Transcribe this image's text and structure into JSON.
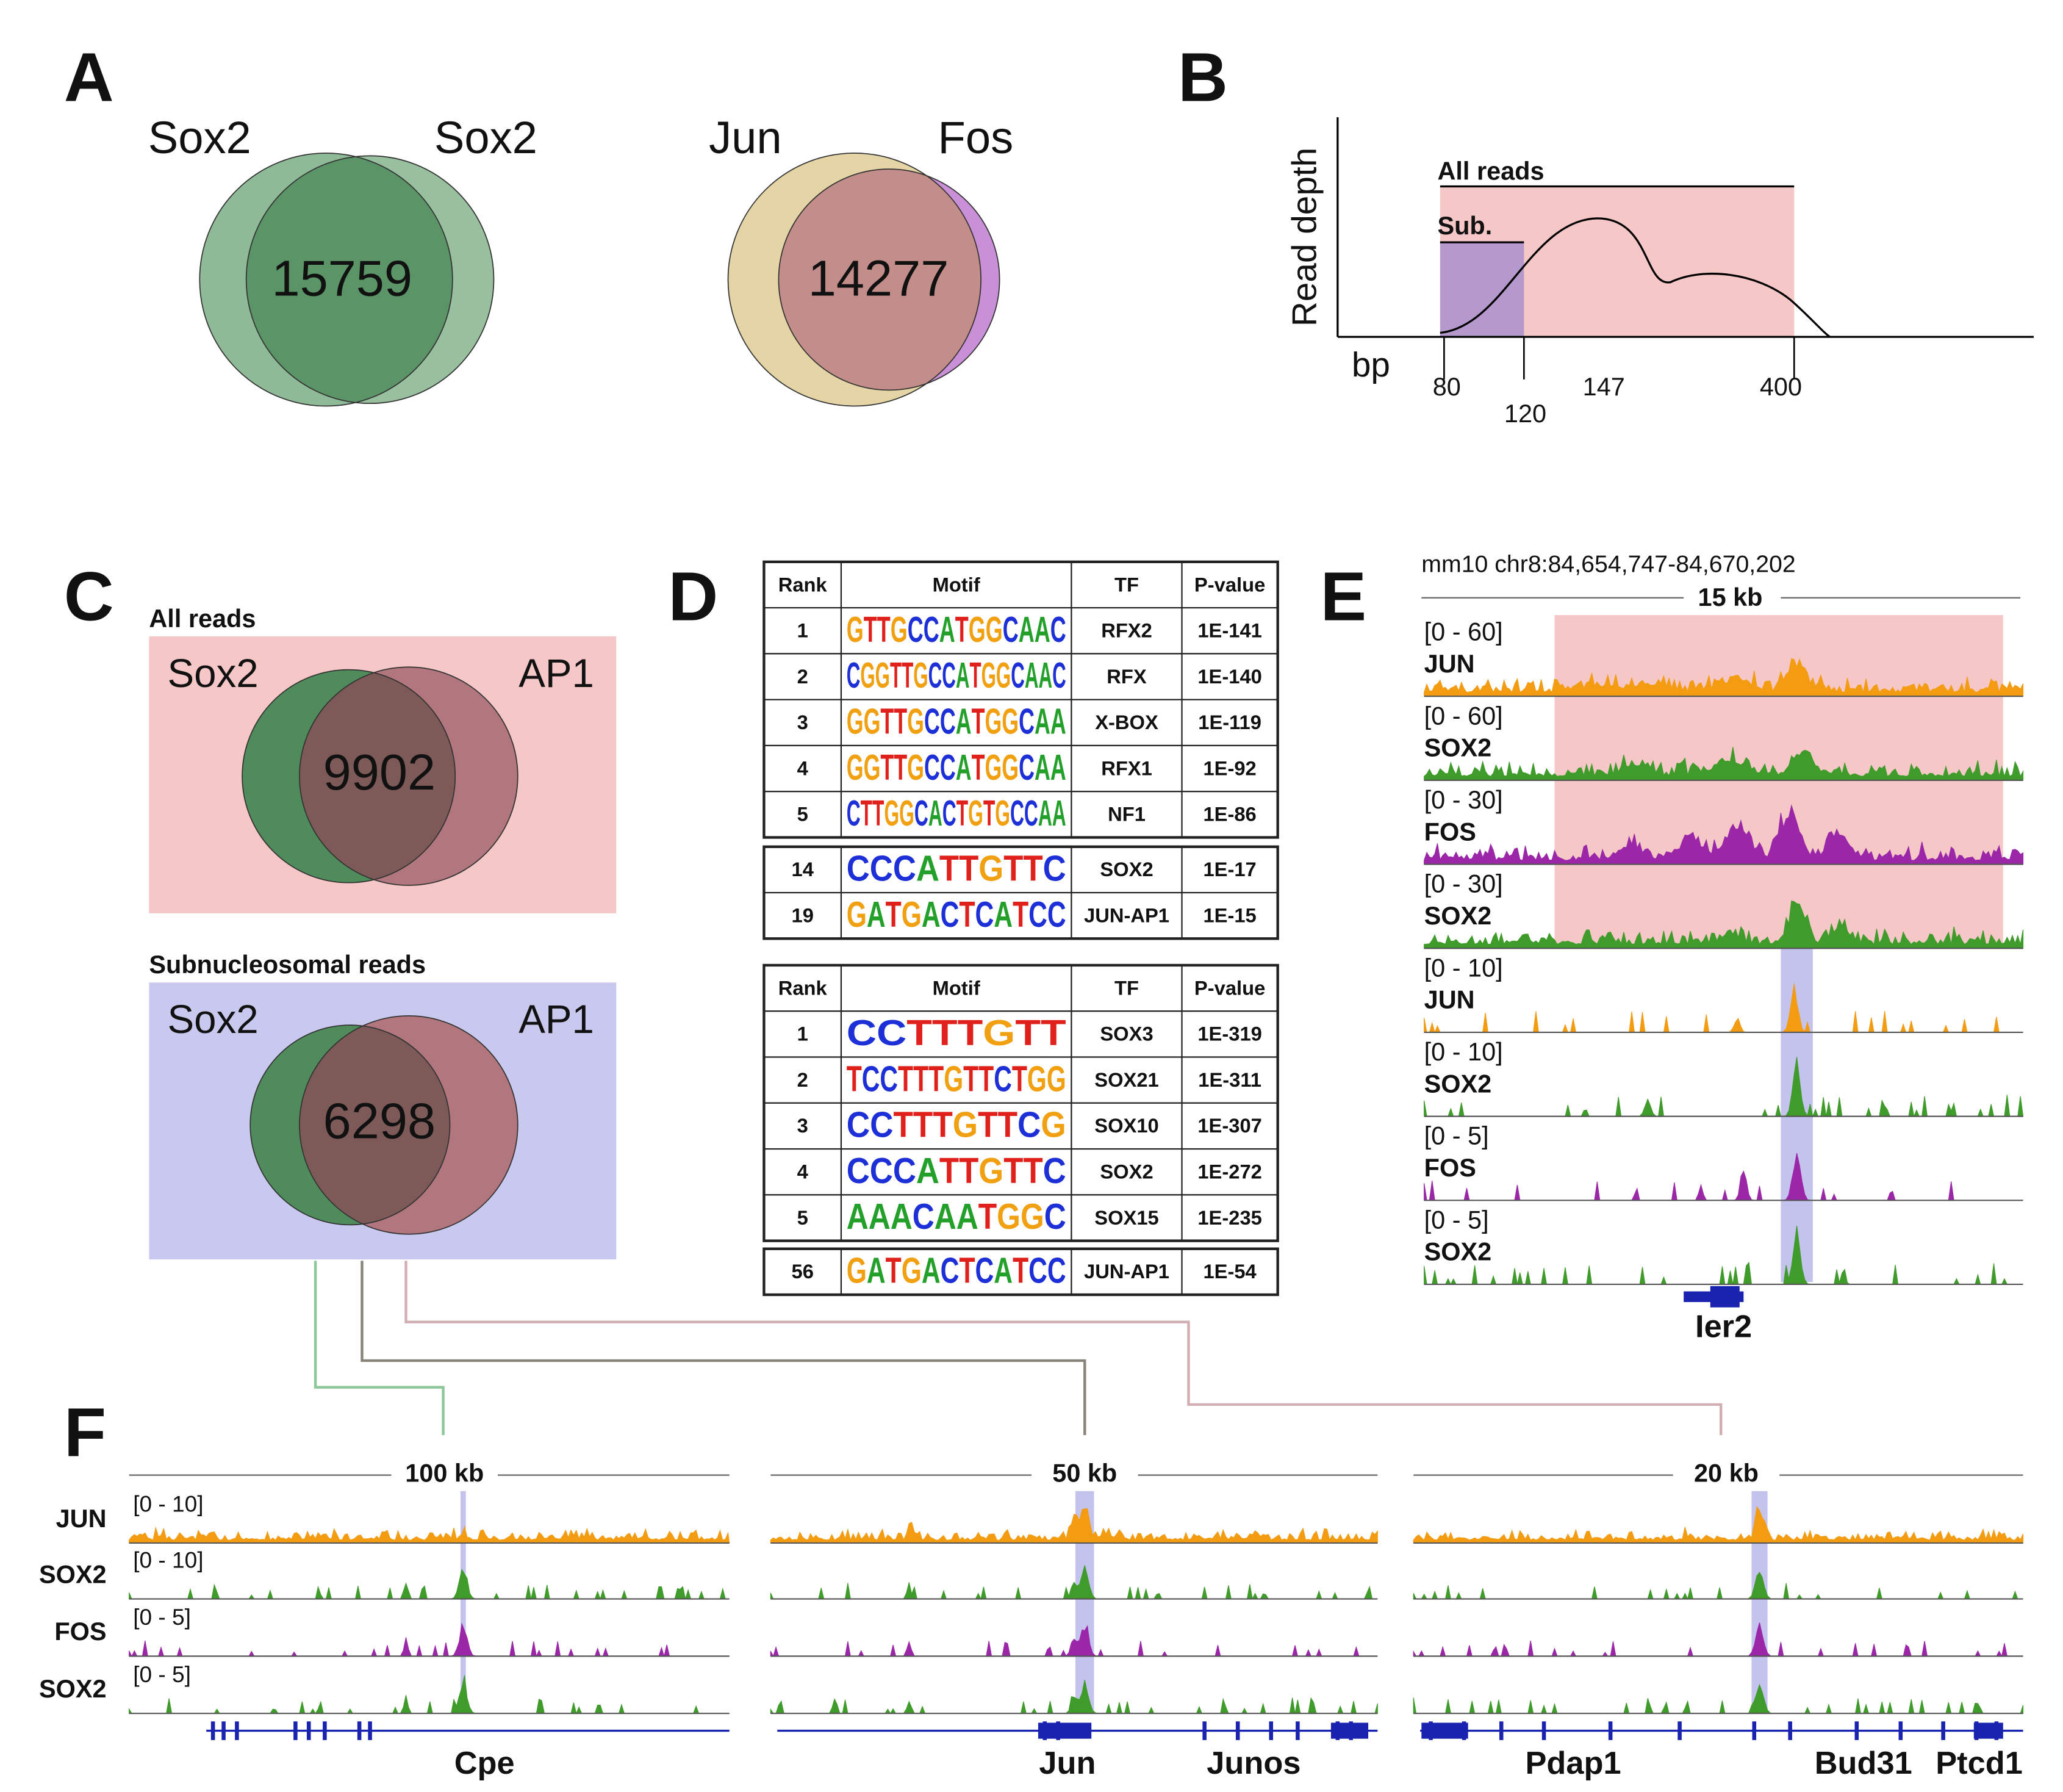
{
  "panel_labels": [
    "A",
    "B",
    "C",
    "D",
    "E",
    "F"
  ],
  "panel_a": {
    "venns": [
      {
        "left": "Sox2",
        "right": "Sox2",
        "overlap": "15759"
      },
      {
        "left": "Jun",
        "right": "Fos",
        "overlap": "14277"
      }
    ]
  },
  "panel_b": {
    "y_label": "Read depth",
    "x_label": "bp",
    "all_reads": "All reads",
    "sub": "Sub.",
    "ticks": [
      "80",
      "120",
      "147",
      "400"
    ]
  },
  "panel_c": {
    "blocks": [
      {
        "title": "All reads",
        "left": "Sox2",
        "right": "AP1",
        "overlap": "9902"
      },
      {
        "title": "Subnucleosomal reads",
        "left": "Sox2",
        "right": "AP1",
        "overlap": "6298"
      }
    ]
  },
  "panel_d": {
    "tables": [
      {
        "header": [
          "Rank",
          "Motif",
          "TF",
          "P-value"
        ],
        "rows": [
          [
            "1",
            "GTTGCCATGGCAAC",
            "RFX2",
            "1E-141"
          ],
          [
            "2",
            "CGGTTGCCATGGCAAC",
            "RFX",
            "1E-140"
          ],
          [
            "3",
            "GGTTGCCATGGCAA",
            "X-BOX",
            "1E-119"
          ],
          [
            "4",
            "GGTTGCCATGGCAA",
            "RFX1",
            "1E-92"
          ],
          [
            "5",
            "CTTGGCACTGTGCCAA",
            "NF1",
            "1E-86"
          ]
        ],
        "extra_rows": [
          [
            "14",
            "CCCATTGTTC",
            "SOX2",
            "1E-17"
          ],
          [
            "19",
            "GATGACTCATCC",
            "JUN-AP1",
            "1E-15"
          ]
        ]
      },
      {
        "header": [
          "Rank",
          "Motif",
          "TF",
          "P-value"
        ],
        "rows": [
          [
            "1",
            "CCTTTGTT",
            "SOX3",
            "1E-319"
          ],
          [
            "2",
            "TCCTTTGTTCTGG",
            "SOX21",
            "1E-311"
          ],
          [
            "3",
            "CCTTTGTTCG",
            "SOX10",
            "1E-307"
          ],
          [
            "4",
            "CCCATTGTTC",
            "SOX2",
            "1E-272"
          ],
          [
            "5",
            "AAACAATGGC",
            "SOX15",
            "1E-235"
          ]
        ],
        "extra_rows": [
          [
            "56",
            "GATGACTCATCC",
            "JUN-AP1",
            "1E-54"
          ]
        ]
      }
    ]
  },
  "panel_e": {
    "locus": "mm10 chr8:84,654,747-84,670,202",
    "scale": "15 kb",
    "tracks": [
      {
        "range": "[0 - 60]",
        "name": "JUN",
        "color": "#f39c12"
      },
      {
        "range": "[0 - 60]",
        "name": "SOX2",
        "color": "#3f9b2a"
      },
      {
        "range": "[0 - 30]",
        "name": "FOS",
        "color": "#9b26a8"
      },
      {
        "range": "[0 - 30]",
        "name": "SOX2",
        "color": "#3f9b2a"
      },
      {
        "range": "[0 - 10]",
        "name": "JUN",
        "color": "#f39c12"
      },
      {
        "range": "[0 - 10]",
        "name": "SOX2",
        "color": "#3f9b2a"
      },
      {
        "range": "[0 - 5]",
        "name": "FOS",
        "color": "#9b26a8"
      },
      {
        "range": "[0 - 5]",
        "name": "SOX2",
        "color": "#3f9b2a"
      }
    ],
    "gene": "Ier2"
  },
  "panel_f": {
    "track_names": [
      "JUN",
      "SOX2",
      "FOS",
      "SOX2"
    ],
    "track_colors": [
      "#f39c12",
      "#3f9b2a",
      "#9b26a8",
      "#3f9b2a"
    ],
    "ranges": [
      "[0 - 10]",
      "[0 - 10]",
      "[0 - 5]",
      "[0 - 5]"
    ],
    "loci": [
      {
        "scale": "100 kb",
        "genes": [
          "Cpe"
        ]
      },
      {
        "scale": "50 kb",
        "genes": [
          "Jun",
          "Junos"
        ]
      },
      {
        "scale": "20 kb",
        "genes": [
          "Pdap1",
          "Bud31",
          "Ptcd1"
        ]
      }
    ]
  }
}
